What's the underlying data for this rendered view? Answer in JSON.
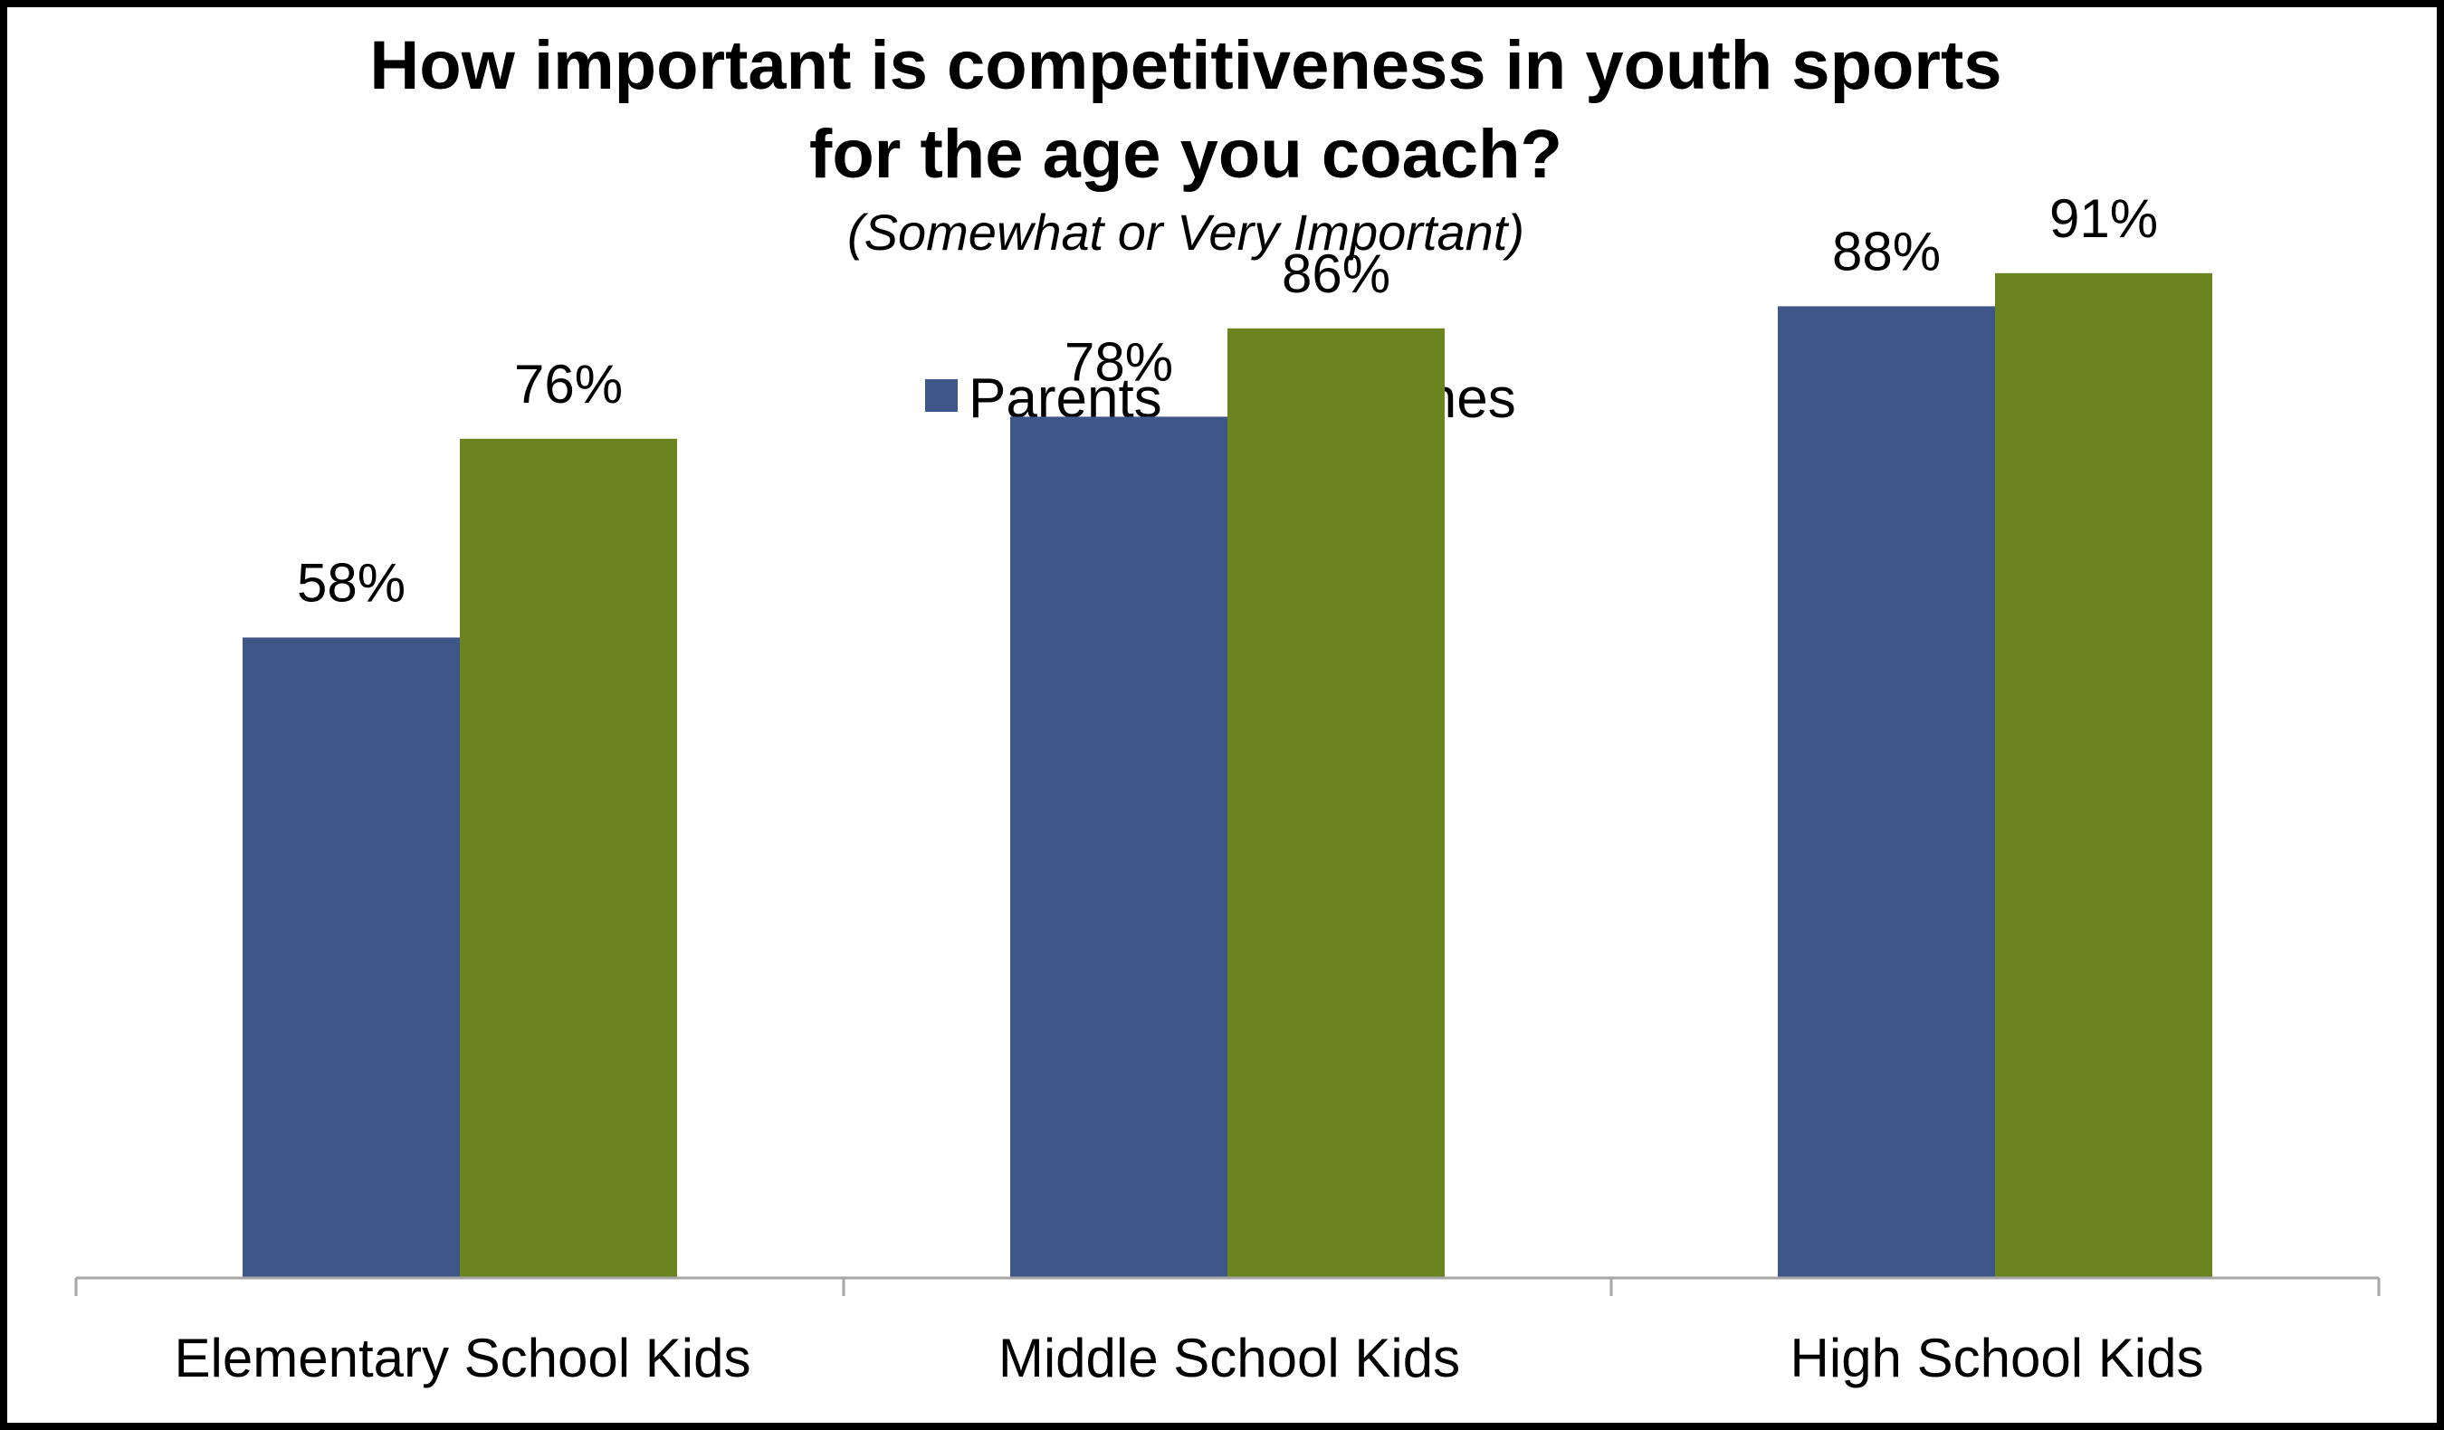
{
  "chart_data": {
    "type": "bar",
    "title_line1": "How important is competitiveness in youth sports",
    "title_line2": "for the age you coach?",
    "subtitle": "(Somewhat or Very Important)",
    "categories": [
      "Elementary School Kids",
      "Middle School Kids",
      "High School Kids"
    ],
    "series": [
      {
        "name": "Parents",
        "color": "#3F5689",
        "values": [
          58,
          78,
          88
        ],
        "labels": [
          "58%",
          "78%",
          "88%"
        ]
      },
      {
        "name": "Coaches",
        "color": "#6B841F",
        "values": [
          76,
          86,
          91
        ],
        "labels": [
          "76%",
          "86%",
          "91%"
        ]
      }
    ],
    "ylim": [
      0,
      100
    ],
    "grid": false,
    "legend_position": "top-center",
    "xlabel": "",
    "ylabel": ""
  }
}
